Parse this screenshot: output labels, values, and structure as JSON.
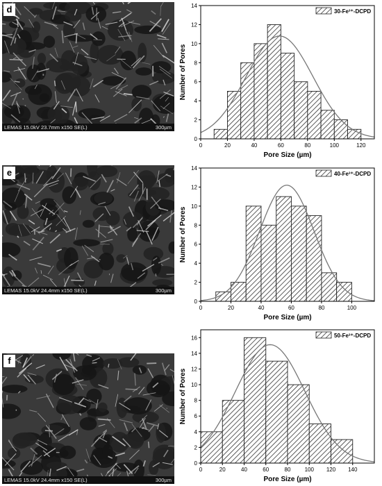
{
  "panels": [
    {
      "letter": "d",
      "sem_info": "LEMAS 15.0kV 23.7mm x150 SE(L)",
      "sem_scale": "300µm"
    },
    {
      "letter": "e",
      "sem_info": "LEMAS 15.0kV 24.4mm x150 SE(L)",
      "sem_scale": "300µm"
    },
    {
      "letter": "f",
      "sem_info": "LEMAS 15.0kV 24.4mm x150 SE(L)",
      "sem_scale": "300µm"
    }
  ],
  "chart_data": [
    {
      "type": "bar",
      "legend": "30-Fe³⁺-DCPD",
      "legend_position": "top-right",
      "xlabel": "Pore Size (µm)",
      "ylabel": "Number of Pores",
      "xlim": [
        0,
        130
      ],
      "ylim": [
        0,
        14
      ],
      "xticks": [
        0,
        20,
        40,
        60,
        80,
        100,
        120
      ],
      "yticks": [
        0,
        2,
        4,
        6,
        8,
        10,
        12,
        14
      ],
      "bins": [
        [
          10,
          20
        ],
        [
          20,
          30
        ],
        [
          30,
          40
        ],
        [
          40,
          50
        ],
        [
          50,
          60
        ],
        [
          60,
          70
        ],
        [
          70,
          80
        ],
        [
          80,
          90
        ],
        [
          90,
          100
        ],
        [
          100,
          110
        ],
        [
          110,
          120
        ]
      ],
      "values": [
        1,
        5,
        8,
        10,
        12,
        9,
        6,
        5,
        3,
        2,
        1
      ],
      "fit": {
        "type": "normal",
        "mean": 59,
        "peak": 10.8,
        "sd": 25
      }
    },
    {
      "type": "bar",
      "legend": "40-Fe³⁺-DCPD",
      "legend_position": "top-right",
      "xlabel": "Pore Size (µm)",
      "ylabel": "Number of Pores",
      "xlim": [
        0,
        115
      ],
      "ylim": [
        0,
        14
      ],
      "xticks": [
        0,
        20,
        40,
        60,
        80,
        100
      ],
      "yticks": [
        0,
        2,
        4,
        6,
        8,
        10,
        12,
        14
      ],
      "bins": [
        [
          10,
          20
        ],
        [
          20,
          30
        ],
        [
          30,
          40
        ],
        [
          40,
          50
        ],
        [
          50,
          60
        ],
        [
          60,
          70
        ],
        [
          70,
          80
        ],
        [
          80,
          90
        ],
        [
          90,
          100
        ]
      ],
      "values": [
        1,
        2,
        10,
        8,
        11,
        10,
        9,
        3,
        2
      ],
      "fit": {
        "type": "normal",
        "mean": 57,
        "peak": 12.2,
        "sd": 18
      }
    },
    {
      "type": "bar",
      "legend": "50-Fe³⁺-DCPD",
      "legend_position": "top-right",
      "xlabel": "Pore Size (µm)",
      "ylabel": "Number of Pores",
      "xlim": [
        0,
        160
      ],
      "ylim": [
        0,
        17
      ],
      "xticks": [
        0,
        20,
        40,
        60,
        80,
        100,
        120,
        140
      ],
      "yticks": [
        0,
        2,
        4,
        6,
        8,
        10,
        12,
        14,
        16
      ],
      "bins": [
        [
          0,
          20
        ],
        [
          20,
          40
        ],
        [
          40,
          60
        ],
        [
          60,
          80
        ],
        [
          80,
          100
        ],
        [
          100,
          120
        ],
        [
          120,
          140
        ]
      ],
      "values": [
        4,
        8,
        16,
        13,
        10,
        5,
        3
      ],
      "fit": {
        "type": "normal",
        "mean": 64,
        "peak": 15.1,
        "sd": 32
      }
    }
  ]
}
